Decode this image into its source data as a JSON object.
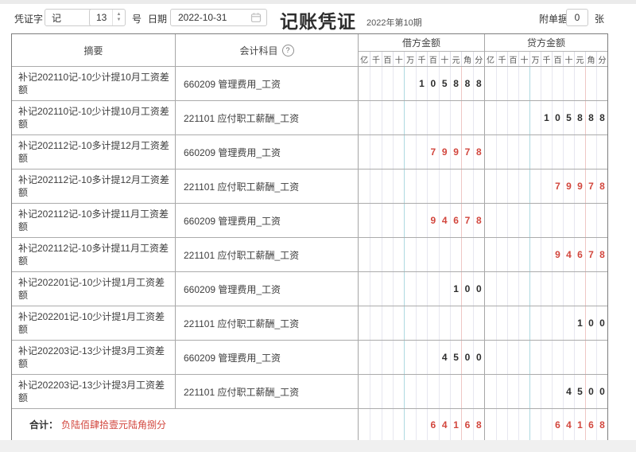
{
  "toolbar": {
    "voucher_word_label": "凭证字",
    "voucher_word": "记",
    "voucher_number": "13",
    "number_suffix": "号",
    "date_label": "日期",
    "date_value": "2022-10-31",
    "title": "记账凭证",
    "period": "2022年第10期",
    "attachment_label": "附单据",
    "attachment_count": "0",
    "attachment_unit": "张"
  },
  "table": {
    "summary_header": "摘要",
    "account_header": "会计科目",
    "debit_header": "借方金额",
    "credit_header": "贷方金额",
    "digit_units": [
      "亿",
      "千",
      "百",
      "十",
      "万",
      "千",
      "百",
      "十",
      "元",
      "角",
      "分"
    ],
    "rows": [
      {
        "summary": "补记202110记-10少计提10月工资差额",
        "account": "660209 管理费用_工资",
        "debit": "105888",
        "credit": "",
        "negative": false
      },
      {
        "summary": "补记202110记-10少计提10月工资差额",
        "account": "221101 应付职工薪酬_工资",
        "debit": "",
        "credit": "105888",
        "negative": false
      },
      {
        "summary": "补记202112记-10多计提12月工资差额",
        "account": "660209 管理费用_工资",
        "debit": "79978",
        "credit": "",
        "negative": true
      },
      {
        "summary": "补记202112记-10多计提12月工资差额",
        "account": "221101 应付职工薪酬_工资",
        "debit": "",
        "credit": "79978",
        "negative": true
      },
      {
        "summary": "补记202112记-10多计提11月工资差额",
        "account": "660209 管理费用_工资",
        "debit": "94678",
        "credit": "",
        "negative": true
      },
      {
        "summary": "补记202112记-10多计提11月工资差额",
        "account": "221101 应付职工薪酬_工资",
        "debit": "",
        "credit": "94678",
        "negative": true
      },
      {
        "summary": "补记202201记-10少计提1月工资差额",
        "account": "660209 管理费用_工资",
        "debit": "100",
        "credit": "",
        "negative": false
      },
      {
        "summary": "补记202201记-10少计提1月工资差额",
        "account": "221101 应付职工薪酬_工资",
        "debit": "",
        "credit": "100",
        "negative": false
      },
      {
        "summary": "补记202203记-13少计提3月工资差额",
        "account": "660209 管理费用_工资",
        "debit": "4500",
        "credit": "",
        "negative": false
      },
      {
        "summary": "补记202203记-13少计提3月工资差额",
        "account": "221101 应付职工薪酬_工资",
        "debit": "",
        "credit": "4500",
        "negative": false
      }
    ],
    "total": {
      "label": "合计：",
      "amount_in_words": "负陆佰肆拾壹元陆角捌分",
      "debit": "64168",
      "credit": "64168",
      "negative": true
    }
  },
  "colors": {
    "negative_red": "#d2463d",
    "wan_separator": "#aed9e0",
    "jiao_separator": "#efc7c4"
  }
}
